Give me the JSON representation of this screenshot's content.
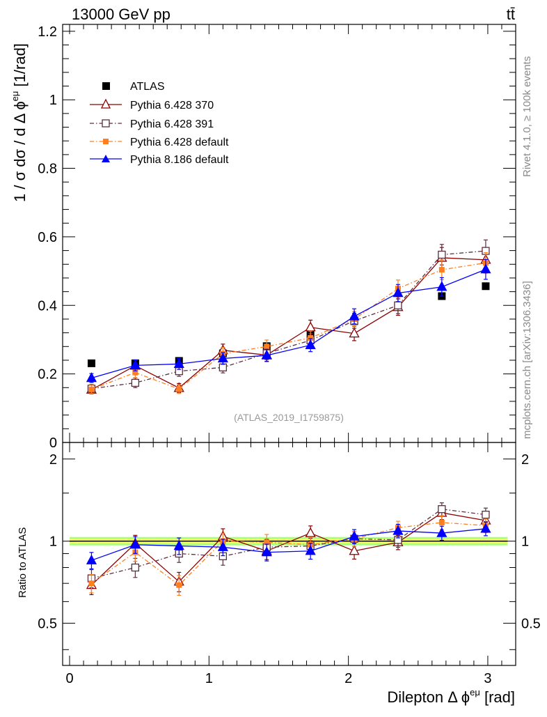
{
  "header": {
    "energy_label": "13000 GeV pp",
    "process_label": "tt̄"
  },
  "side": {
    "rivet_label": "Rivet 4.1.0, ≥ 100k events",
    "mcplots_label": "mcplots.cern.ch [arXiv:1306.3436]"
  },
  "colors": {
    "atlas": "#000000",
    "p370": "#8b0000",
    "p391": "#5a2e3e",
    "p6def": "#ff7f1e",
    "p8def": "#0000ff",
    "band_inner": "#ffff66",
    "band_outer": "#aaff77"
  },
  "chart_data": {
    "type": "line",
    "title": "",
    "analysis_label": "(ATLAS_2019_I1759875)",
    "xlabel_prefix": "Dilepton",
    "xlabel_symbol": "Δ ϕ",
    "xlabel_sup": "eμ",
    "xlabel_unit": "[rad]",
    "ylabel_main": "1 / σ  dσ / d Δ ϕ",
    "ylabel_sup": "eμ",
    "ylabel_unit": "[1/rad]",
    "ylabel_ratio": "Ratio to ATLAS",
    "xlim": [
      -0.05,
      3.2
    ],
    "ylim_main": [
      0,
      1.22
    ],
    "ylim_ratio": [
      0.35,
      2.3
    ],
    "x_ticks": [
      "0",
      "1",
      "2",
      "3"
    ],
    "y_ticks_main": [
      "0",
      "0.2",
      "0.4",
      "0.6",
      "0.8",
      "1",
      "1.2"
    ],
    "y_ticks_ratio": [
      "0.5",
      "1",
      "2"
    ],
    "x": [
      0.157,
      0.471,
      0.785,
      1.1,
      1.414,
      1.728,
      2.042,
      2.356,
      2.67,
      2.985
    ],
    "reference": {
      "name": "ATLAS",
      "values": [
        0.231,
        0.231,
        0.238,
        0.26,
        0.281,
        0.318,
        0.354,
        0.397,
        0.427,
        0.456
      ]
    },
    "series": [
      {
        "name": "Pythia 6.428 370",
        "key": "p370",
        "values": [
          0.154,
          0.224,
          0.159,
          0.269,
          0.255,
          0.336,
          0.318,
          0.395,
          0.539,
          0.533
        ],
        "errors": [
          0.012,
          0.016,
          0.013,
          0.018,
          0.018,
          0.021,
          0.021,
          0.024,
          0.03,
          0.031
        ],
        "ratio": [
          0.69,
          0.98,
          0.71,
          1.04,
          0.92,
          1.07,
          0.92,
          0.99,
          1.27,
          1.19
        ]
      },
      {
        "name": "Pythia 6.428 391",
        "key": "p391",
        "values": [
          0.157,
          0.174,
          0.208,
          0.219,
          0.26,
          0.298,
          0.355,
          0.4,
          0.548,
          0.559
        ],
        "errors": [
          0.012,
          0.014,
          0.015,
          0.016,
          0.018,
          0.02,
          0.022,
          0.024,
          0.03,
          0.032
        ],
        "ratio": [
          0.73,
          0.8,
          0.9,
          0.88,
          0.95,
          0.96,
          1.02,
          1.01,
          1.31,
          1.25
        ]
      },
      {
        "name": "Pythia 6.428 default",
        "key": "p6def",
        "values": [
          0.155,
          0.204,
          0.156,
          0.259,
          0.28,
          0.305,
          0.36,
          0.449,
          0.504,
          0.524
        ],
        "errors": [
          0.012,
          0.015,
          0.013,
          0.018,
          0.019,
          0.02,
          0.022,
          0.025,
          0.029,
          0.03
        ],
        "ratio": [
          0.7,
          0.91,
          0.69,
          1.0,
          0.99,
          0.97,
          1.02,
          1.12,
          1.17,
          1.14
        ]
      },
      {
        "name": "Pythia 8.186 default",
        "key": "p8def",
        "values": [
          0.188,
          0.225,
          0.229,
          0.245,
          0.254,
          0.284,
          0.368,
          0.436,
          0.454,
          0.505
        ],
        "errors": [
          0.013,
          0.016,
          0.016,
          0.017,
          0.018,
          0.019,
          0.022,
          0.025,
          0.027,
          0.029
        ],
        "ratio": [
          0.85,
          0.97,
          0.96,
          0.95,
          0.91,
          0.92,
          1.04,
          1.09,
          1.07,
          1.11
        ]
      }
    ]
  }
}
